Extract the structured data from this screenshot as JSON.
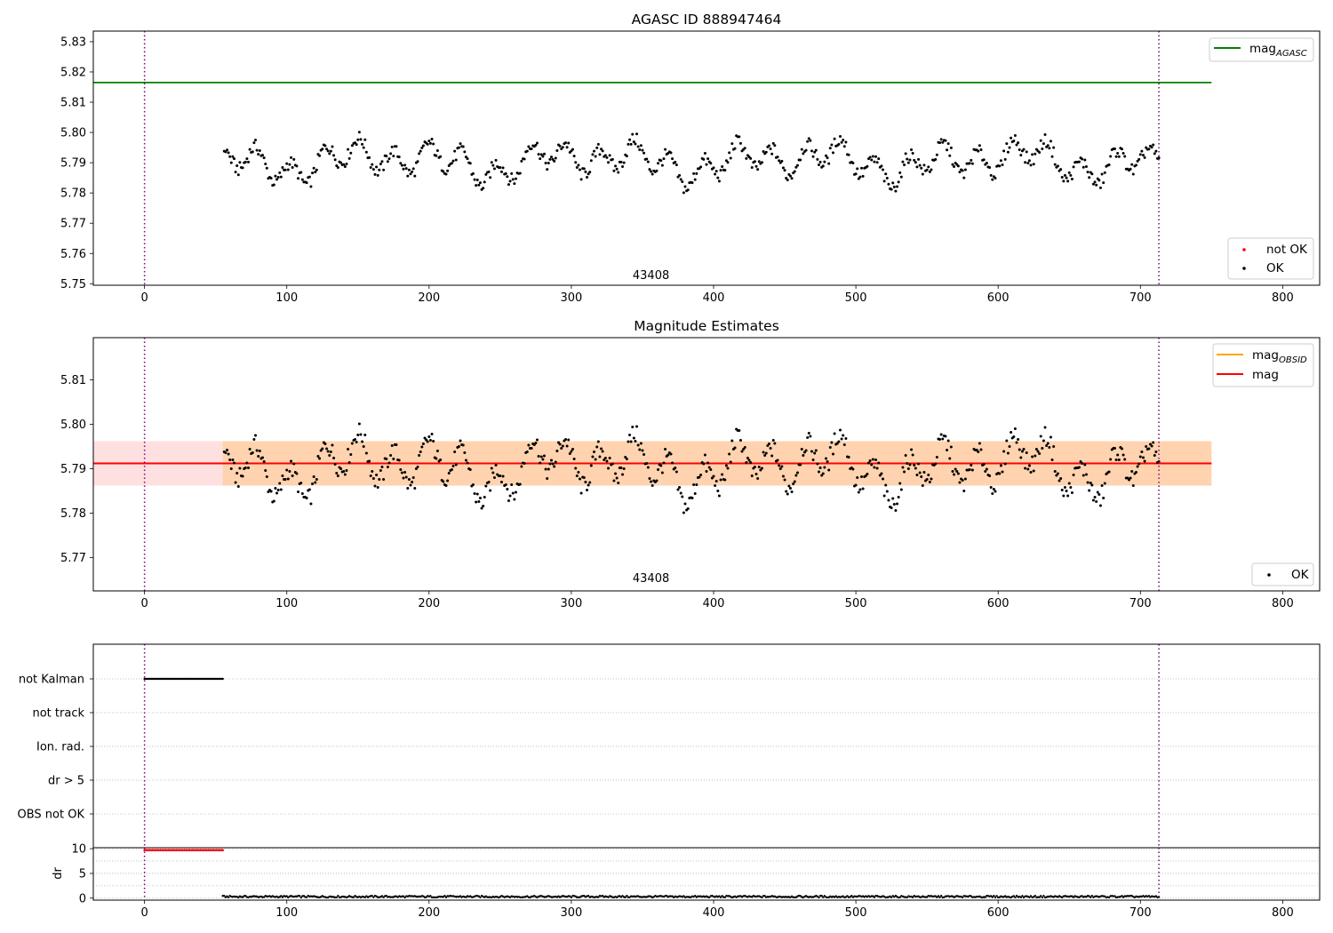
{
  "chart_data": [
    {
      "type": "scatter",
      "title": "AGASC ID 888947464",
      "xlabel": "",
      "ylabel": "",
      "xlim": [
        -36,
        826
      ],
      "ylim": [
        5.7495,
        5.8335
      ],
      "xticks": [
        0,
        100,
        200,
        300,
        400,
        500,
        600,
        700,
        800
      ],
      "yticks": [
        5.75,
        5.76,
        5.77,
        5.78,
        5.79,
        5.8,
        5.81,
        5.82,
        5.83
      ],
      "vlines": [
        0,
        713
      ],
      "hlines": [
        {
          "name": "mag_AGASC",
          "y": 5.8165,
          "x": [
            -36,
            750
          ],
          "color": "#008000"
        }
      ],
      "series": [
        {
          "name": "not OK",
          "color": "#ff0000",
          "x": [],
          "y": []
        },
        {
          "name": "OK",
          "color": "#000000",
          "x": [],
          "y": []
        }
      ],
      "annotations": [
        {
          "text": "43408",
          "x": 356,
          "y": 5.7515
        }
      ],
      "legends": [
        {
          "placement": "top-right",
          "entries": [
            {
              "label": "mag",
              "sub": "AGASC",
              "kind": "line",
              "color": "#008000"
            }
          ]
        },
        {
          "placement": "bottom-right",
          "entries": [
            {
              "label": "not OK",
              "kind": "point",
              "color": "#ff0000"
            },
            {
              "label": "OK",
              "kind": "point",
              "color": "#000000"
            }
          ]
        }
      ]
    },
    {
      "type": "scatter",
      "title": "Magnitude Estimates",
      "xlabel": "",
      "ylabel": "",
      "xlim": [
        -36,
        826
      ],
      "ylim": [
        5.7625,
        5.8195
      ],
      "xticks": [
        0,
        100,
        200,
        300,
        400,
        500,
        600,
        700,
        800
      ],
      "yticks": [
        5.77,
        5.78,
        5.79,
        5.8,
        5.81
      ],
      "vlines": [
        0,
        713
      ],
      "hlines": [
        {
          "name": "mag",
          "y": 5.7912,
          "x": [
            -36,
            750
          ],
          "color": "#ff0000"
        }
      ],
      "bands": [
        {
          "name": "mag_OBSID band",
          "y": [
            5.7862,
            5.7962
          ],
          "x": [
            55,
            750
          ],
          "color": "#ffa500"
        },
        {
          "name": "mag band",
          "y": [
            5.7862,
            5.7962
          ],
          "x": [
            -36,
            750
          ],
          "color": "#ff0000"
        }
      ],
      "series": [
        {
          "name": "OK",
          "color": "#000000",
          "x": [],
          "y": []
        }
      ],
      "annotations": [
        {
          "text": "43408",
          "x": 356,
          "y": 5.7645
        }
      ],
      "legends": [
        {
          "placement": "top-right",
          "entries": [
            {
              "label": "mag",
              "sub": "OBSID",
              "kind": "line",
              "color": "#ffa500"
            },
            {
              "label": "mag",
              "kind": "line",
              "color": "#ff0000"
            }
          ]
        },
        {
          "placement": "bottom-right",
          "entries": [
            {
              "label": "OK",
              "kind": "point",
              "color": "#000000"
            }
          ]
        }
      ]
    },
    {
      "type": "scatter",
      "title": "",
      "xlabel": "",
      "ylabel": "",
      "xlim": [
        -36,
        826
      ],
      "yticks": [
        "not Kalman",
        "not track",
        "Ion. rad.",
        "dr > 5",
        "OBS not OK"
      ],
      "vlines": [
        0,
        713
      ],
      "grid": true,
      "series": [
        {
          "name": "not Kalman",
          "color": "#000000",
          "x_range": [
            0,
            55
          ],
          "y": "not Kalman"
        }
      ]
    },
    {
      "type": "scatter",
      "title": "",
      "xlabel": "",
      "ylabel": "dr",
      "xlim": [
        -36,
        826
      ],
      "ylim": [
        -0.4,
        10.2
      ],
      "xticks": [
        0,
        100,
        200,
        300,
        400,
        500,
        600,
        700,
        800
      ],
      "yticks": [
        0,
        5,
        10
      ],
      "vlines": [
        0,
        713
      ],
      "grid": true,
      "series": [
        {
          "name": "dr (not OK)",
          "color": "#ff0000",
          "x_range": [
            0,
            55
          ],
          "y": 9.7
        },
        {
          "name": "dr (OK)",
          "color": "#000000",
          "x_range": [
            55,
            713
          ],
          "y_approx": 0.3
        }
      ]
    }
  ]
}
